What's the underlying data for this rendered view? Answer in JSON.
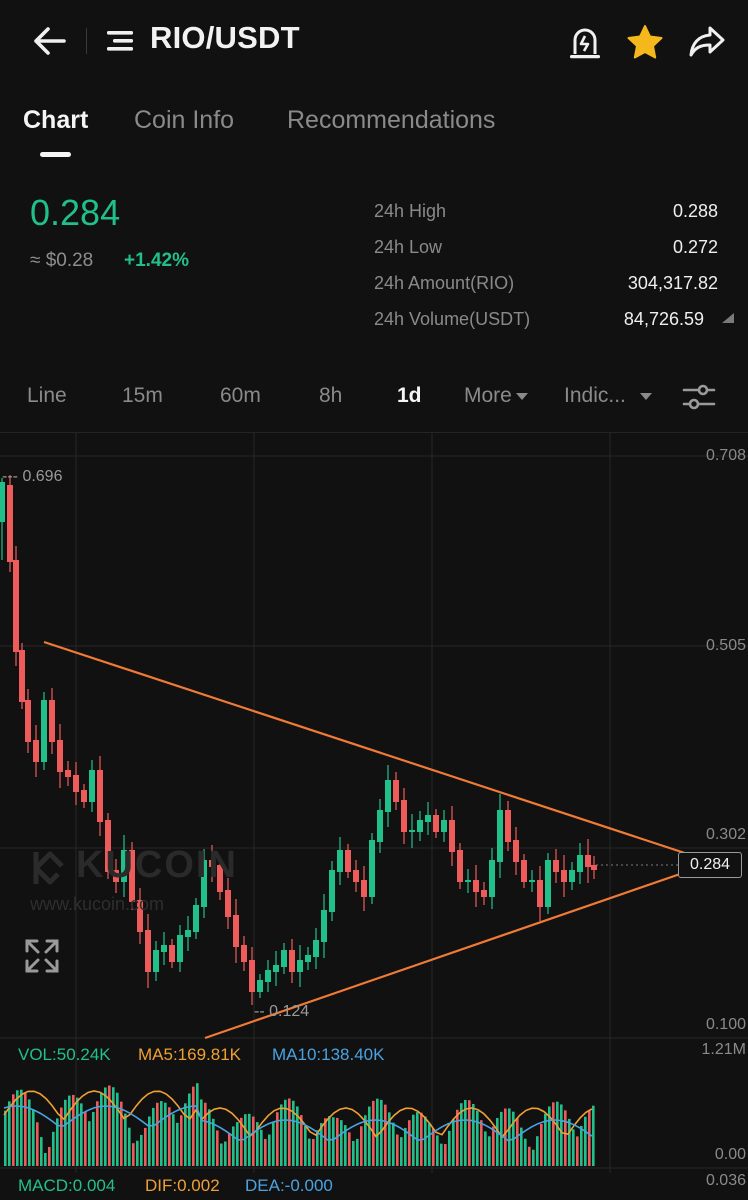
{
  "header": {
    "pair": "RIO/USDT",
    "icons": [
      "back-arrow-icon",
      "menu-icon",
      "price-alert-icon",
      "favorite-star-icon",
      "share-icon"
    ],
    "star_color": "#f5b81c"
  },
  "tabs": [
    {
      "label": "Chart",
      "active": true
    },
    {
      "label": "Coin Info",
      "active": false
    },
    {
      "label": "Recommendations",
      "active": false
    }
  ],
  "ticker": {
    "price": "0.284",
    "fiat": "≈ $0.28",
    "change": "+1.42%",
    "up_color": "#21c08b",
    "down_color": "#ee5b5b",
    "stats": [
      {
        "label": "24h High",
        "value": "0.288"
      },
      {
        "label": "24h Low",
        "value": "0.272"
      },
      {
        "label": "24h Amount(RIO)",
        "value": "304,317.82"
      },
      {
        "label": "24h Volume(USDT)",
        "value": "84,726.59"
      }
    ]
  },
  "timeframes": [
    {
      "label": "Line",
      "active": false
    },
    {
      "label": "15m",
      "active": false
    },
    {
      "label": "60m",
      "active": false
    },
    {
      "label": "8h",
      "active": false
    },
    {
      "label": "1d",
      "active": true
    },
    {
      "label": "More",
      "active": false
    },
    {
      "label": "Indic...",
      "active": false
    }
  ],
  "watermark": {
    "brand": "KUCOIN",
    "url": "www.kucoin.com"
  },
  "chart_data": {
    "type": "candlestick",
    "price_axis": [
      "0.708",
      "0.505",
      "0.302",
      "0.100"
    ],
    "current_price_label": "0.284",
    "high_marker": "0.696",
    "low_marker": "0.124",
    "trendline_color": "#f07a36",
    "volume_axis": [
      "1.21M",
      "0.00"
    ],
    "macd_axis": "0.036",
    "indicators": {
      "vol": "VOL:50.24K",
      "ma5": "MA5:169.81K",
      "ma10": "MA10:138.40K",
      "macd": "MACD:0.004",
      "dif": "DIF:0.002",
      "dea": "DEA:-0.000"
    },
    "indicator_colors": {
      "vol": "#21c08b",
      "ma5": "#f0a033",
      "ma10": "#4aa3e0"
    }
  }
}
